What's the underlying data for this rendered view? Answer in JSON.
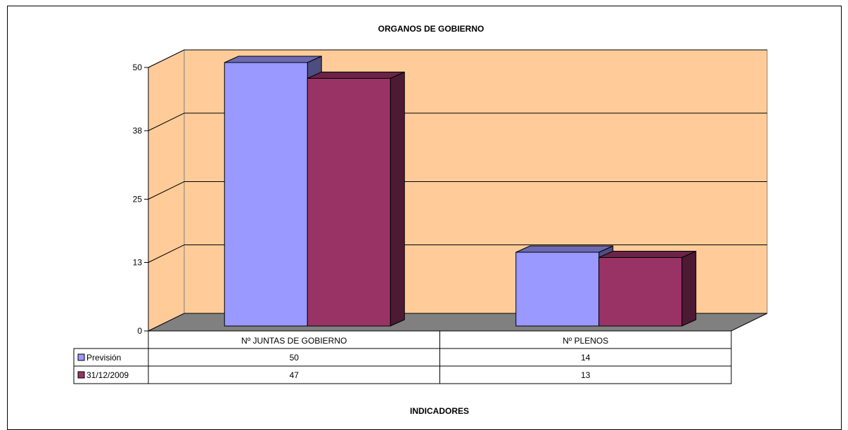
{
  "chart_data": {
    "type": "bar",
    "title": "ORGANOS DE GOBIERNO",
    "xlabel": "INDICADORES",
    "ylabel": "",
    "categories": [
      "Nº JUNTAS DE GOBIERNO",
      "Nº PLENOS"
    ],
    "series": [
      {
        "name": "Previsión",
        "values": [
          50,
          14
        ],
        "value_labels": [
          "50",
          "14"
        ],
        "color": "#9999ff"
      },
      {
        "name": "31/12/2009",
        "values": [
          47,
          13
        ],
        "value_labels": [
          "47",
          "13"
        ],
        "color": "#993366"
      }
    ],
    "ylim": [
      0,
      50
    ],
    "yticks": [
      "0",
      "13",
      "25",
      "38",
      "50"
    ],
    "grid": true,
    "legend": "data-table-left",
    "wall_color": "#ffcc99",
    "floor_color": "#808080"
  }
}
